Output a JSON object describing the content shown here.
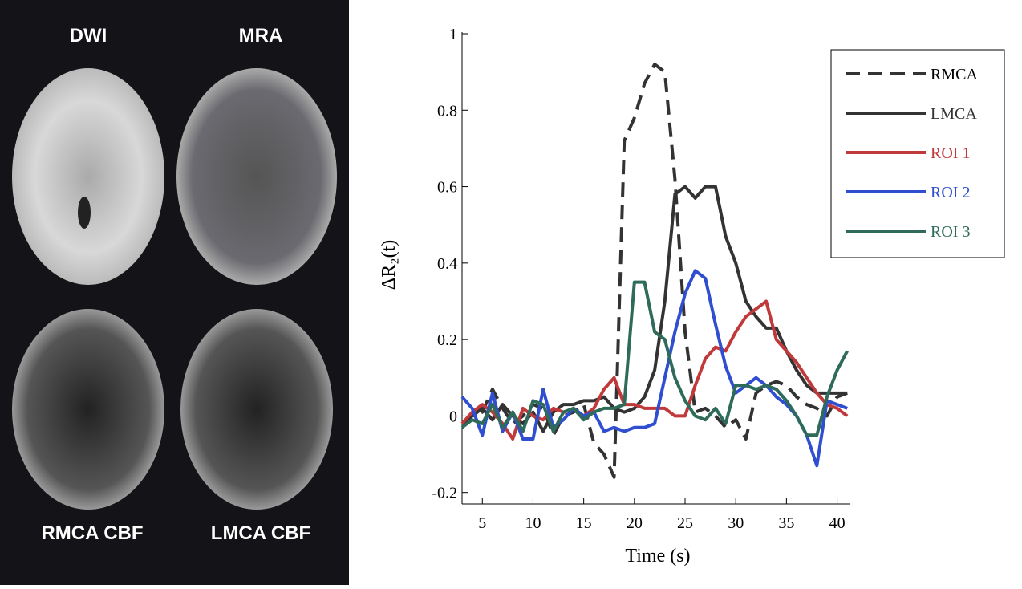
{
  "panels": [
    {
      "label": "DWI"
    },
    {
      "label": "MRA"
    },
    {
      "label": "RMCA CBF"
    },
    {
      "label": "LMCA CBF"
    }
  ],
  "chart_data": {
    "type": "line",
    "x_label": "Time (s)",
    "y_label": "ΔR₂(t)",
    "x": [
      3,
      4,
      5,
      6,
      7,
      8,
      9,
      10,
      11,
      12,
      13,
      14,
      15,
      16,
      17,
      18,
      19,
      20,
      21,
      22,
      23,
      24,
      25,
      26,
      27,
      28,
      29,
      30,
      31,
      32,
      33,
      34,
      35,
      36,
      37,
      38,
      39,
      40,
      41
    ],
    "xlim": [
      3,
      41.3
    ],
    "xticks": [
      5,
      10,
      15,
      20,
      25,
      30,
      35,
      40
    ],
    "ylim": [
      -0.23,
      1.0
    ],
    "yticks": [
      {
        "value": -0.2,
        "label": "-0.2"
      },
      0,
      0.2,
      0.4,
      0.6,
      0.8,
      1
    ],
    "legend": "upper right",
    "series": [
      {
        "name": "RMCA",
        "color": "#333333",
        "dash": true,
        "values": [
          -0.02,
          0,
          0.01,
          0.07,
          0.02,
          -0.02,
          0,
          0.03,
          0.02,
          -0.05,
          0,
          0.01,
          0.03,
          -0.07,
          -0.1,
          -0.16,
          0.72,
          0.78,
          0.87,
          0.92,
          0.9,
          0.62,
          0.22,
          0.01,
          0.02,
          0,
          -0.03,
          -0.01,
          -0.06,
          0.06,
          0.08,
          0.09,
          0.08,
          0.05,
          0.03,
          0.02,
          0,
          0.05,
          0.06
        ]
      },
      {
        "name": "LMCA",
        "color": "#333333",
        "values": [
          -0.02,
          0,
          0.02,
          -0.01,
          0.03,
          0,
          -0.02,
          0.01,
          -0.04,
          0.01,
          0.03,
          0.03,
          0.04,
          0.04,
          0.05,
          0.02,
          0.01,
          0.02,
          0.05,
          0.12,
          0.3,
          0.58,
          0.6,
          0.57,
          0.6,
          0.6,
          0.47,
          0.4,
          0.3,
          0.26,
          0.23,
          0.23,
          0.17,
          0.12,
          0.08,
          0.06,
          0.06,
          0.06,
          0.06
        ]
      },
      {
        "name": "ROI 1",
        "color": "#c0393b",
        "values": [
          -0.02,
          0.01,
          0.03,
          0.01,
          -0.02,
          -0.06,
          0.02,
          0,
          -0.01,
          0.02,
          0.01,
          0.02,
          0,
          0.02,
          0.07,
          0.1,
          0.03,
          0.03,
          0.02,
          0.02,
          0.02,
          0,
          0,
          0.08,
          0.15,
          0.18,
          0.17,
          0.22,
          0.26,
          0.28,
          0.3,
          0.2,
          0.17,
          0.14,
          0.1,
          0.06,
          0.03,
          0.02,
          0
        ]
      },
      {
        "name": "ROI 2",
        "color": "#2f4fd0",
        "values": [
          0.05,
          0.02,
          -0.05,
          0.06,
          -0.04,
          0.01,
          -0.06,
          -0.06,
          0.07,
          -0.03,
          -0.01,
          0.02,
          0,
          0.01,
          -0.04,
          -0.03,
          -0.04,
          -0.03,
          -0.03,
          -0.02,
          0.1,
          0.22,
          0.32,
          0.38,
          0.36,
          0.24,
          0.13,
          0.06,
          0.08,
          0.1,
          0.08,
          0.05,
          0.03,
          0,
          -0.05,
          -0.13,
          0.04,
          0.03,
          0.02
        ]
      },
      {
        "name": "ROI 3",
        "color": "#2e6b5a",
        "values": [
          -0.03,
          -0.01,
          -0.02,
          0.03,
          -0.03,
          0.01,
          -0.04,
          0.04,
          0.03,
          -0.04,
          0.01,
          0.02,
          -0.01,
          0.01,
          0.02,
          0.02,
          0.03,
          0.35,
          0.35,
          0.22,
          0.2,
          0.1,
          0.04,
          0,
          -0.01,
          0.02,
          -0.02,
          0.08,
          0.08,
          0.07,
          0.08,
          0.07,
          0.04,
          0,
          -0.05,
          -0.05,
          0.05,
          0.12,
          0.17
        ]
      }
    ]
  }
}
